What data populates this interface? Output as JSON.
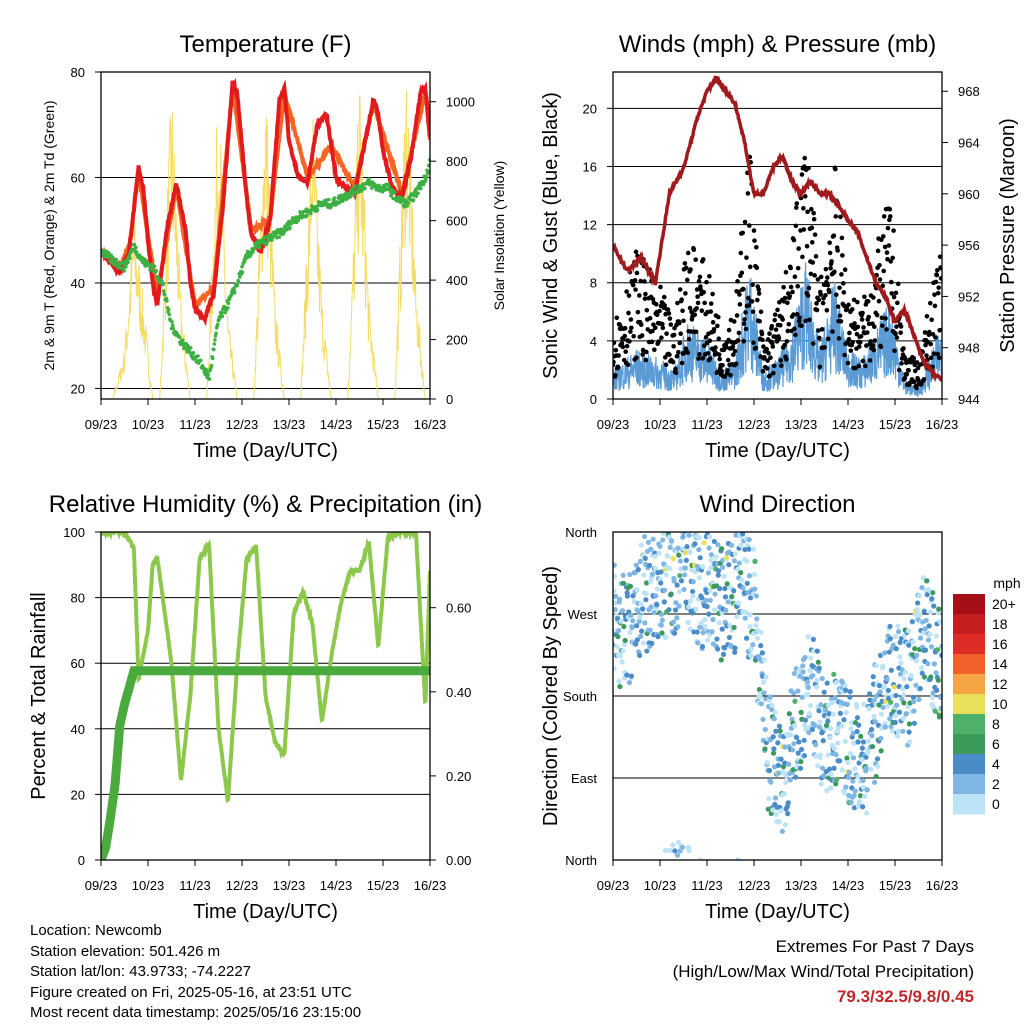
{
  "x_ticks": [
    "09/23",
    "10/23",
    "11/23",
    "12/23",
    "13/23",
    "14/23",
    "15/23",
    "16/23"
  ],
  "x_title": "Time (Day/UTC)",
  "colors": {
    "temp_2m": "#e31a1c",
    "temp_9m": "#f26522",
    "dewpoint": "#3cb043",
    "solar": "#f5dc63",
    "wind": "#5a9bd5",
    "gust": "#000000",
    "pressure": "#a0191c",
    "rh": "#8cc84b",
    "precip": "#4aaa3d",
    "extremes": "#c0282d"
  },
  "chart_data": [
    {
      "type": "line",
      "title": "Temperature (F)",
      "xlabel": "Time (Day/UTC)",
      "ylabel": "2m & 9m T (Red, Orange) & 2m Td (Green)",
      "y2label": "Solar Insolation (Yellow)",
      "ylim": [
        18,
        80
      ],
      "y_ticks": [
        20,
        40,
        60,
        80
      ],
      "y2lim": [
        0,
        1100
      ],
      "y2_ticks": [
        0,
        200,
        400,
        600,
        800,
        1000
      ],
      "x_days": [
        9,
        16
      ],
      "grid": true,
      "series": [
        {
          "name": "2m T",
          "x": [
            9.0,
            9.2,
            9.4,
            9.6,
            9.8,
            9.9,
            10.0,
            10.1,
            10.2,
            10.4,
            10.6,
            10.8,
            10.9,
            11.0,
            11.2,
            11.4,
            11.6,
            11.8,
            11.9,
            12.0,
            12.1,
            12.2,
            12.4,
            12.6,
            12.8,
            12.9,
            13.0,
            13.2,
            13.4,
            13.6,
            13.8,
            13.9,
            14.0,
            14.2,
            14.4,
            14.6,
            14.8,
            14.9,
            15.0,
            15.2,
            15.4,
            15.6,
            15.8,
            15.9,
            16.0
          ],
          "y": [
            46,
            44,
            42,
            46,
            62,
            58,
            48,
            40,
            36,
            50,
            59,
            50,
            40,
            35,
            33,
            38,
            55,
            78,
            76,
            66,
            56,
            49,
            46,
            52,
            75,
            77,
            67,
            60,
            59,
            70,
            72,
            66,
            60,
            58,
            57,
            66,
            75,
            72,
            65,
            58,
            56,
            64,
            76,
            77,
            68
          ]
        },
        {
          "name": "9m T",
          "x": [
            9.0,
            9.4,
            9.6,
            9.8,
            10.0,
            10.2,
            10.6,
            11.0,
            11.4,
            11.8,
            12.2,
            12.6,
            12.9,
            13.4,
            13.9,
            14.4,
            14.8,
            15.4,
            15.9,
            16.0
          ],
          "y": [
            46,
            43,
            47,
            61,
            49,
            38,
            58,
            36,
            39,
            77,
            50,
            52,
            76,
            60,
            66,
            58,
            74,
            57,
            76,
            67
          ]
        },
        {
          "name": "2m Td",
          "x": [
            9.0,
            9.3,
            9.5,
            9.7,
            9.9,
            10.1,
            10.3,
            10.5,
            10.7,
            10.9,
            11.1,
            11.3,
            11.5,
            11.7,
            11.9,
            12.1,
            12.3,
            12.5,
            12.7,
            12.9,
            13.1,
            13.3,
            13.5,
            13.7,
            13.9,
            14.1,
            14.3,
            14.5,
            14.7,
            14.9,
            15.1,
            15.3,
            15.5,
            15.7,
            15.9,
            16.0
          ],
          "y": [
            46,
            44,
            43,
            47,
            44,
            43,
            40,
            32,
            29,
            27,
            25,
            22,
            33,
            36,
            40,
            45,
            47,
            48,
            49,
            50,
            52,
            53,
            54,
            55,
            55,
            56,
            57,
            58,
            59,
            58,
            58,
            56,
            55,
            57,
            60,
            63
          ]
        },
        {
          "name": "Solar Insolation",
          "axis": "y2",
          "x": [
            9.0,
            9.25,
            9.5,
            9.7,
            9.9,
            10.1,
            10.25,
            10.5,
            10.7,
            10.9,
            11.1,
            11.25,
            11.5,
            11.7,
            11.9,
            12.1,
            12.25,
            12.5,
            12.7,
            12.9,
            13.1,
            13.25,
            13.5,
            13.7,
            13.9,
            14.1,
            14.25,
            14.5,
            14.7,
            14.9,
            15.1,
            15.25,
            15.5,
            15.7,
            15.9,
            16.0
          ],
          "y": [
            0,
            0,
            150,
            560,
            300,
            0,
            0,
            960,
            300,
            0,
            0,
            0,
            950,
            250,
            0,
            0,
            0,
            980,
            300,
            0,
            0,
            0,
            900,
            300,
            0,
            0,
            0,
            960,
            300,
            0,
            0,
            0,
            1040,
            350,
            0,
            0
          ]
        }
      ]
    },
    {
      "type": "scatter",
      "title": "Winds (mph) & Pressure (mb)",
      "xlabel": "Time (Day/UTC)",
      "ylabel": "Sonic Wind & Gust (Blue, Black)",
      "y2label": "Station Pressure (Maroon)",
      "ylim": [
        0,
        22.5
      ],
      "y_ticks": [
        0,
        4,
        8,
        12,
        16,
        20
      ],
      "y2lim": [
        944,
        969.5
      ],
      "y2_ticks": [
        944,
        948,
        952,
        956,
        960,
        964,
        968
      ],
      "x_days": [
        9,
        16
      ],
      "grid": true,
      "series": [
        {
          "name": "Sonic Wind",
          "x": [
            9.0,
            9.5,
            10.0,
            10.3,
            10.6,
            11.0,
            11.3,
            11.6,
            11.9,
            12.2,
            12.5,
            12.8,
            13.1,
            13.4,
            13.7,
            14.0,
            14.3,
            14.6,
            14.9,
            15.2,
            15.5,
            15.8,
            16.0
          ],
          "y": [
            1.5,
            2.5,
            2,
            1.5,
            4,
            3,
            1.5,
            2,
            7,
            1.5,
            2,
            3.5,
            7,
            2.5,
            6,
            2.5,
            2,
            3.5,
            5,
            1,
            0.5,
            2.5,
            4
          ]
        },
        {
          "name": "Gust",
          "x": [
            9.0,
            9.5,
            10.0,
            10.3,
            10.6,
            11.0,
            11.3,
            11.6,
            11.9,
            12.2,
            12.5,
            12.8,
            13.1,
            13.4,
            13.7,
            14.0,
            14.3,
            14.6,
            14.9,
            15.2,
            15.5,
            15.8,
            16.0
          ],
          "y": [
            4,
            8,
            6,
            4,
            9,
            7,
            4,
            5,
            14,
            3,
            5,
            8,
            15,
            6,
            13,
            6,
            5,
            8,
            11,
            2.5,
            2,
            6,
            8
          ]
        },
        {
          "name": "Station Pressure",
          "axis": "y2",
          "x": [
            9.0,
            9.3,
            9.6,
            9.9,
            10.2,
            10.5,
            10.8,
            11.0,
            11.2,
            11.4,
            11.6,
            11.8,
            12.0,
            12.2,
            12.4,
            12.6,
            12.8,
            13.0,
            13.2,
            13.4,
            13.6,
            13.8,
            14.0,
            14.2,
            14.4,
            14.6,
            14.8,
            15.0,
            15.2,
            15.4,
            15.6,
            15.8,
            16.0
          ],
          "y": [
            956,
            954,
            955,
            953,
            960,
            962,
            966,
            968,
            969,
            968,
            967,
            964,
            960,
            960,
            962,
            963,
            961,
            960,
            961,
            960,
            960,
            959,
            958,
            957,
            955,
            953,
            952,
            950,
            951,
            949,
            947,
            946,
            945.5
          ]
        }
      ]
    },
    {
      "type": "line",
      "title": "Relative Humidity (%) & Precipitation (in)",
      "xlabel": "Time (Day/UTC)",
      "ylabel": "Percent & Total Rainfall",
      "ylim": [
        0,
        100
      ],
      "y_ticks": [
        0,
        20,
        40,
        60,
        80,
        100
      ],
      "y2lim": [
        0,
        0.78
      ],
      "y2_ticks": [
        0.0,
        0.2,
        0.4,
        0.6
      ],
      "y2_tick_labels": [
        "0.00",
        "0.20",
        "0.40",
        "0.60"
      ],
      "x_days": [
        9,
        16
      ],
      "grid": true,
      "series": [
        {
          "name": "Relative Humidity",
          "x": [
            9.0,
            9.3,
            9.5,
            9.7,
            9.8,
            10.0,
            10.1,
            10.2,
            10.5,
            10.7,
            10.9,
            11.1,
            11.3,
            11.5,
            11.7,
            11.9,
            12.1,
            12.3,
            12.5,
            12.7,
            12.9,
            13.1,
            13.3,
            13.5,
            13.7,
            13.9,
            14.1,
            14.3,
            14.5,
            14.7,
            14.9,
            15.1,
            15.3,
            15.5,
            15.7,
            15.9,
            16.0
          ],
          "y": [
            100,
            100,
            100,
            95,
            55,
            70,
            90,
            92,
            60,
            24,
            50,
            92,
            96,
            40,
            18,
            60,
            92,
            96,
            50,
            36,
            32,
            75,
            82,
            72,
            42,
            62,
            78,
            88,
            88,
            97,
            65,
            98,
            100,
            100,
            100,
            47,
            88
          ]
        },
        {
          "name": "Total Precipitation",
          "axis": "y2",
          "x": [
            9.0,
            9.1,
            9.2,
            9.3,
            9.4,
            9.5,
            9.6,
            9.7,
            10.0,
            11.0,
            12.0,
            13.0,
            14.0,
            15.0,
            16.0
          ],
          "y": [
            0.0,
            0.03,
            0.1,
            0.18,
            0.32,
            0.37,
            0.41,
            0.45,
            0.45,
            0.45,
            0.45,
            0.45,
            0.45,
            0.45,
            0.45
          ]
        }
      ]
    },
    {
      "type": "scatter",
      "title": "Wind Direction",
      "xlabel": "Time (Day/UTC)",
      "ylabel": "Direction (Colored By Speed)",
      "y_ticks": [
        "North",
        "East",
        "South",
        "West",
        "North"
      ],
      "ylim": [
        0,
        360
      ],
      "x_days": [
        9,
        16
      ],
      "grid": true,
      "colorbar": {
        "title": "mph",
        "labels": [
          "20+",
          "18",
          "16",
          "14",
          "12",
          "10",
          "8",
          "6",
          "4",
          "2",
          "0"
        ],
        "colors": [
          "#a50f15",
          "#c41e20",
          "#de2d26",
          "#f0602a",
          "#f4a646",
          "#e8e05a",
          "#4fb06a",
          "#3a9a5a",
          "#4a8cc8",
          "#7fb6e3",
          "#bde3f6"
        ]
      },
      "series": [
        {
          "name": "Wind Direction",
          "x": [
            9.0,
            9.3,
            9.6,
            9.9,
            10.2,
            10.5,
            10.8,
            11.1,
            11.4,
            11.7,
            12.0,
            12.3,
            12.6,
            12.9,
            13.2,
            13.5,
            13.8,
            14.1,
            14.4,
            14.7,
            15.0,
            15.3,
            15.6,
            15.9,
            16.0
          ],
          "y": [
            260,
            250,
            290,
            300,
            310,
            320,
            300,
            290,
            280,
            300,
            280,
            120,
            90,
            150,
            200,
            130,
            150,
            120,
            110,
            180,
            200,
            190,
            250,
            220,
            200
          ]
        }
      ]
    }
  ],
  "info": {
    "location": "Location: Newcomb",
    "elevation": "Station elevation: 501.426 m",
    "latlon": "Station lat/lon: 43.9733; -74.2227",
    "created": "Figure created on Fri, 2025-05-16, at 23:51 UTC",
    "recent": "Most recent data timestamp: 2025/05/16 23:15:00"
  },
  "extremes": {
    "line1": "Extremes For Past 7 Days",
    "line2": "(High/Low/Max Wind/Total Precipitation)",
    "value": "79.3/32.5/9.8/0.45"
  }
}
